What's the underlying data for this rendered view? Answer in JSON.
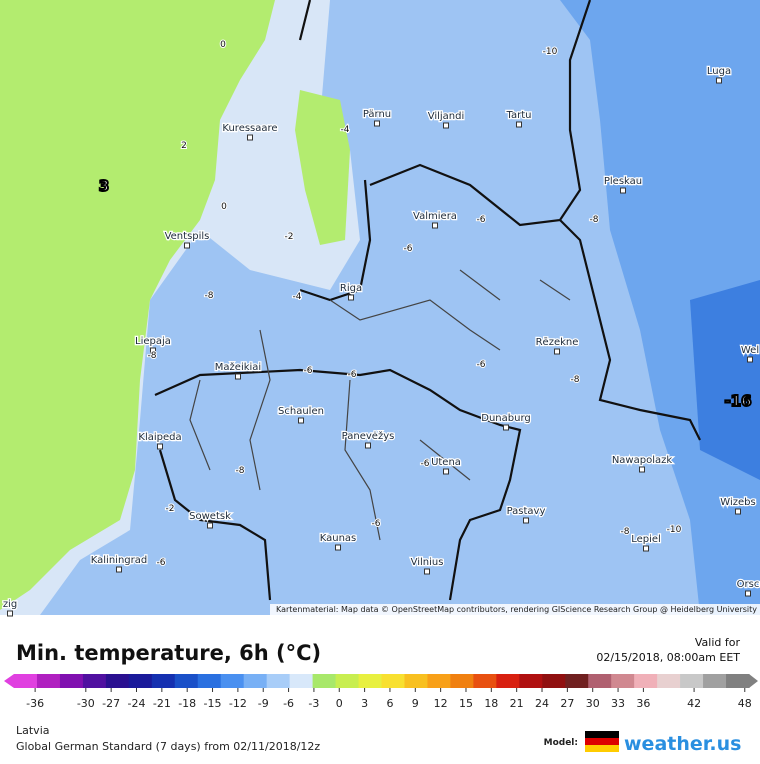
{
  "map": {
    "cities": [
      "Kuressaare",
      "Pärnu",
      "Viljandi",
      "Tartu",
      "Luga",
      "Pleskau",
      "Valmiera",
      "Ventspils",
      "Riga",
      "Liepaja",
      "Mažeikiai",
      "Rēzekne",
      "Schaulen",
      "Panevėžys",
      "Dunaburg",
      "Klaipeda",
      "Utena",
      "Nawapolazk",
      "Sowetsk",
      "Pastavy",
      "Kaunas",
      "Lepiel",
      "Kaliningrad",
      "Vilnius",
      "Wizebs",
      "Orsc",
      "Wel",
      "zig"
    ],
    "contours": [
      0,
      2,
      3,
      0,
      -2,
      -4,
      -8,
      -4,
      -6,
      -6,
      -8,
      -10,
      -6,
      -8,
      -6,
      -6,
      -8,
      -8,
      -6,
      -6,
      -2,
      -6,
      -8,
      -10,
      -16
    ],
    "attribution": "Kartenmaterial: Map data © OpenStreetMap contributors, rendering GIScience Research Group @ Heidelberg University"
  },
  "legend": {
    "title": "Min. temperature, 6h (°C)",
    "valid_label": "Valid for",
    "valid_time": "02/15/2018, 08:00am EET",
    "range": [
      -38.5,
      48.5
    ],
    "ticks": [
      -36,
      -30,
      -27,
      -24,
      -21,
      -18,
      -15,
      -12,
      -9,
      -6,
      -3,
      0,
      3,
      6,
      9,
      12,
      15,
      18,
      21,
      24,
      27,
      30,
      33,
      36,
      42,
      48
    ],
    "colors": [
      "#e040e0",
      "#b020c0",
      "#8010b0",
      "#5010a0",
      "#2a1090",
      "#1a1a9a",
      "#1530b0",
      "#1a50c8",
      "#2a70e0",
      "#4a90f0",
      "#78b0f5",
      "#a8cdf8",
      "#d8e8fa",
      "#a8e86a",
      "#c8ee50",
      "#e8f040",
      "#f8e030",
      "#f8c020",
      "#f8a018",
      "#f08010",
      "#e85010",
      "#d82010",
      "#b01010",
      "#901010",
      "#702020",
      "#b06070",
      "#d08890",
      "#f0b0b8",
      "#e8d0d0",
      "#c8c8c8",
      "#a0a0a0",
      "#808080"
    ]
  },
  "footer": {
    "region": "Latvia",
    "model_run": "Global German Standard (7 days) from 02/11/2018/12z",
    "model_label": "Model:",
    "brand": "weather.us"
  }
}
